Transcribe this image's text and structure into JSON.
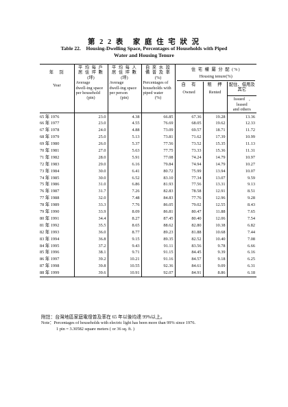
{
  "title": {
    "zh": "第 2 2 表　家 庭 住 宅 狀 況",
    "en_line1": "Table 22.　Housing-Dwelling Space, Percentages of Households with Piped",
    "en_line2": "Water and Housing Tenure"
  },
  "headers": {
    "year": {
      "zh": "年　別",
      "en": "Year"
    },
    "per_household": {
      "zh1": "平 均 每 戶",
      "zh2": "居 住 坪 數",
      "zh3": "(坪)",
      "en1": "Average",
      "en2": "dwell-ing space",
      "en3": "per household",
      "en4": "(pin)"
    },
    "per_person": {
      "zh1": "平 均 每 人",
      "zh2": "居 住 坪 數",
      "zh3": "(坪)",
      "en1": "Average",
      "en2": "dwell-ing space",
      "en3": "per person",
      "en4": "(pin)"
    },
    "piped_water": {
      "zh1": "自 來 水 設",
      "zh2": "備 普 及 率",
      "zh3": "(%)",
      "en1": "Percentages of",
      "en2": "households with",
      "en3": "piped water",
      "en4": "(%)"
    },
    "tenure": {
      "zh": "住 宅 權 屬 分 配 (%)",
      "en": "Housing tenure(%)"
    },
    "owned": {
      "zh": "自　有",
      "en": "Owned"
    },
    "rented": {
      "zh": "租　押",
      "en": "Rented"
    },
    "issued": {
      "zh1": "配住、借用及",
      "zh2": "其它",
      "en1": "Issued　, leased",
      "en2": "and others"
    }
  },
  "rows": [
    {
      "year": "65 年 1976",
      "household": "23.0",
      "person": "4.38",
      "water": "66.85",
      "owned": "67.36",
      "rented": "19.28",
      "issued": "13.36"
    },
    {
      "year": "66 年 1977",
      "household": "23.0",
      "person": "4.55",
      "water": "76.69",
      "owned": "68.05",
      "rented": "19.62",
      "issued": "12.33"
    },
    {
      "year": "67 年 1978",
      "household": "24.0",
      "person": "4.88",
      "water": "73.09",
      "owned": "69.57",
      "rented": "18.71",
      "issued": "11.72"
    },
    {
      "year": "68 年 1979",
      "household": "25.0",
      "person": "5.13",
      "water": "73.81",
      "owned": "71.62",
      "rented": "17.39",
      "issued": "10.99"
    },
    {
      "year": "69 年 1980",
      "household": "26.0",
      "person": "5.37",
      "water": "77.56",
      "owned": "73.52",
      "rented": "15.35",
      "issued": "11.13"
    },
    {
      "year": "70 年 1981",
      "household": "27.0",
      "person": "5.63",
      "water": "77.75",
      "owned": "73.33",
      "rented": "15.36",
      "issued": "11.31"
    },
    {
      "year": "71 年 1982",
      "household": "28.0",
      "person": "5.91",
      "water": "77.08",
      "owned": "74.24",
      "rented": "14.79",
      "issued": "10.97"
    },
    {
      "year": "72 年 1983",
      "household": "29.0",
      "person": "6.16",
      "water": "79.84",
      "owned": "74.94",
      "rented": "14.79",
      "issued": "10.27"
    },
    {
      "year": "73 年 1984",
      "household": "30.0",
      "person": "6.41",
      "water": "80.72",
      "owned": "75.99",
      "rented": "13.94",
      "issued": "10.07"
    },
    {
      "year": "74 年 1985",
      "household": "30.0",
      "person": "6.52",
      "water": "83.10",
      "owned": "77.34",
      "rented": "13.07",
      "issued": "9.59"
    },
    {
      "year": "75 年 1986",
      "household": "31.0",
      "person": "6.86",
      "water": "81.93",
      "owned": "77.56",
      "rented": "13.31",
      "issued": "9.13"
    },
    {
      "year": "76 年 1987",
      "household": "31.7",
      "person": "7.26",
      "water": "82.83",
      "owned": "78.58",
      "rented": "12.91",
      "issued": "8.51"
    },
    {
      "year": "77 年 1988",
      "household": "32.0",
      "person": "7.48",
      "water": "84.83",
      "owned": "77.76",
      "rented": "12.96",
      "issued": "9.28"
    },
    {
      "year": "78 年 1989",
      "household": "33.3",
      "person": "7.76",
      "water": "86.05",
      "owned": "79.02",
      "rented": "12.55",
      "issued": "8.43"
    },
    {
      "year": "79 年 1990",
      "household": "33.9",
      "person": "8.09",
      "water": "86.81",
      "owned": "80.47",
      "rented": "11.88",
      "issued": "7.65"
    },
    {
      "year": "80 年 1991",
      "household": "34.4",
      "person": "8.27",
      "water": "87.45",
      "owned": "80.40",
      "rented": "12.06",
      "issued": "7.54"
    },
    {
      "year": "81 年 1992",
      "household": "35.5",
      "person": "8.65",
      "water": "88.62",
      "owned": "82.80",
      "rented": "10.38",
      "issued": "6.82"
    },
    {
      "year": "82 年 1993",
      "household": "36.0",
      "person": "8.77",
      "water": "89.23",
      "owned": "81.88",
      "rented": "10.68",
      "issued": "7.44"
    },
    {
      "year": "83 年 1994",
      "household": "36.8",
      "person": "9.15",
      "water": "89.35",
      "owned": "82.52",
      "rented": "10.40",
      "issued": "7.08"
    },
    {
      "year": "84 年 1995",
      "household": "37.2",
      "person": "9.43",
      "water": "91.11",
      "owned": "83.56",
      "rented": "9.78",
      "issued": "6.66"
    },
    {
      "year": "85 年 1996",
      "household": "38.1",
      "person": "9.71",
      "water": "91.15",
      "owned": "84.45",
      "rented": "9.39",
      "issued": "6.16"
    },
    {
      "year": "86 年 1997",
      "household": "39.2",
      "person": "10.21",
      "water": "91.16",
      "owned": "84.57",
      "rented": "9.18",
      "issued": "6.25"
    },
    {
      "year": "87 年 1998",
      "household": "39.8",
      "person": "10.55",
      "water": "92.36",
      "owned": "84.61",
      "rented": "9.09",
      "issued": "6.31"
    },
    {
      "year": "88 年 1999",
      "household": "39.6",
      "person": "10.91",
      "water": "92.07",
      "owned": "84.91",
      "rented": "8.86",
      "issued": "6.18"
    }
  ],
  "notes": {
    "zh": "附註：台灣地區家庭電燈普及率在 65 年以後均達 99%以上。",
    "en": "Note：Percentages of households with electric light has been more than 99% since 1976.",
    "pin": "1 pin = 3.30582 square meters ( or 36 sq. ft. )"
  }
}
